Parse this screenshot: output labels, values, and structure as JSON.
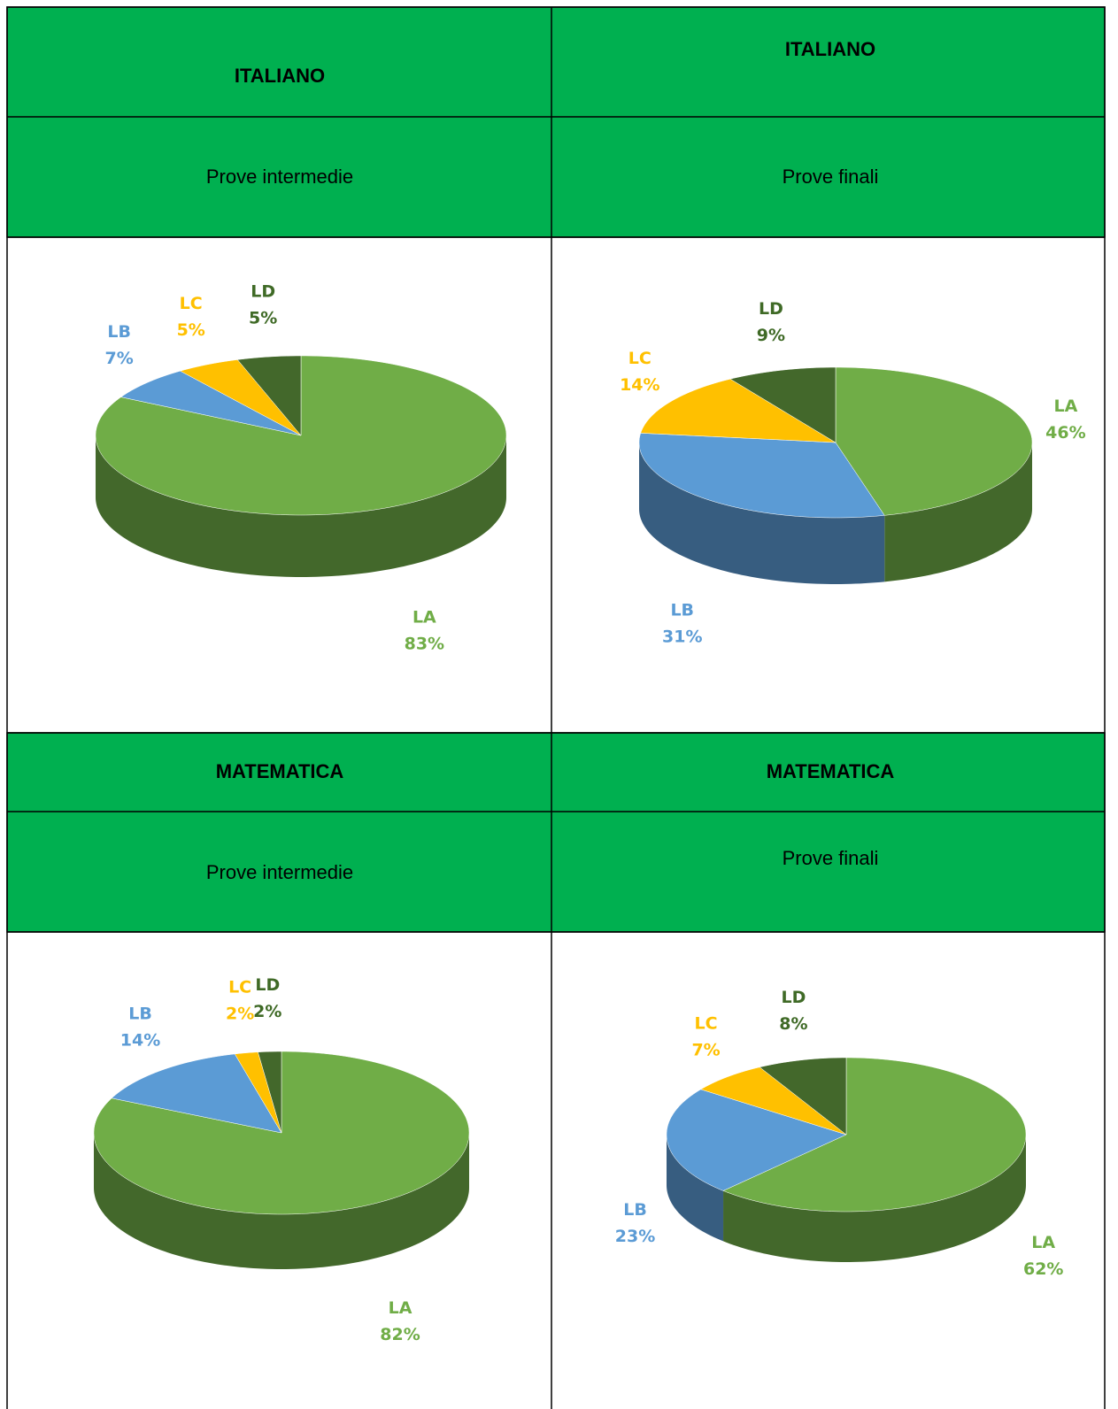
{
  "table": {
    "rows": [
      [
        "ITALIANO",
        "ITALIANO"
      ],
      [
        "Prove intermedie",
        "Prove finali"
      ],
      [
        "MATEMATICA",
        "MATEMATICA"
      ],
      [
        "Prove intermedie",
        "Prove finali"
      ]
    ]
  },
  "chart_data": [
    {
      "type": "pie",
      "categories": [
        "LA",
        "LB",
        "LC",
        "LD"
      ],
      "values": [
        83,
        7,
        5,
        5
      ],
      "value_labels": [
        "83%",
        "7%",
        "5%",
        "5%"
      ],
      "colors": [
        "#70ad47",
        "#5b9bd5",
        "#ffc000",
        "#43682b"
      ]
    },
    {
      "type": "pie",
      "categories": [
        "LA",
        "LB",
        "LC",
        "LD"
      ],
      "values": [
        46,
        31,
        14,
        9
      ],
      "value_labels": [
        "46%",
        "31%",
        "14%",
        "9%"
      ],
      "colors": [
        "#70ad47",
        "#5b9bd5",
        "#ffc000",
        "#43682b"
      ]
    },
    {
      "type": "pie",
      "categories": [
        "LA",
        "LB",
        "LC",
        "LD"
      ],
      "values": [
        82,
        14,
        2,
        2
      ],
      "value_labels": [
        "82%",
        "14%",
        "2%",
        "2%"
      ],
      "colors": [
        "#70ad47",
        "#5b9bd5",
        "#ffc000",
        "#43682b"
      ]
    },
    {
      "type": "pie",
      "categories": [
        "LA",
        "LB",
        "LC",
        "LD"
      ],
      "values": [
        62,
        23,
        7,
        8
      ],
      "value_labels": [
        "62%",
        "23%",
        "7%",
        "8%"
      ],
      "colors": [
        "#70ad47",
        "#5b9bd5",
        "#ffc000",
        "#43682b"
      ]
    }
  ]
}
